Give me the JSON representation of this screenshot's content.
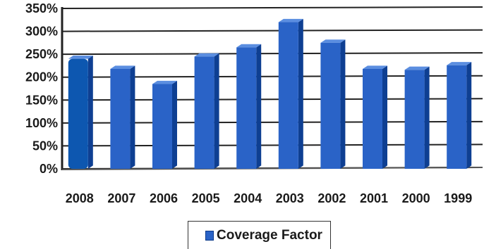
{
  "chart_data": {
    "type": "bar",
    "categories": [
      "2008",
      "2007",
      "2006",
      "2005",
      "2004",
      "2003",
      "2002",
      "2001",
      "2000",
      "1999"
    ],
    "series": [
      {
        "name": "Coverage Factor",
        "values": [
          240,
          218,
          185,
          245,
          265,
          320,
          275,
          218,
          216,
          226
        ]
      }
    ],
    "ylim": [
      0,
      350
    ],
    "yticks": [
      "0%",
      "50%",
      "100%",
      "150%",
      "200%",
      "250%",
      "300%",
      "350%"
    ],
    "grid": true,
    "legend": "bottom-center",
    "colors": {
      "bar": "#2a63c7",
      "highlight_bar": "#0d57b0",
      "bar_side": "#0e3f92",
      "bar_top": "#5b8ee0"
    }
  }
}
